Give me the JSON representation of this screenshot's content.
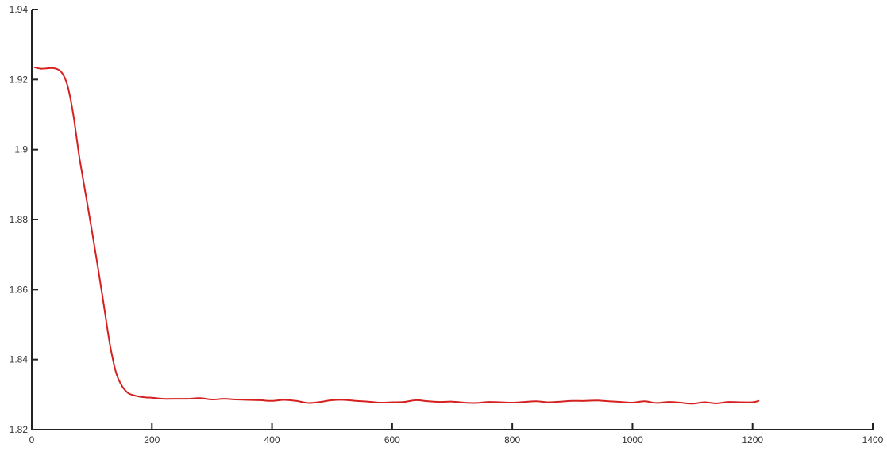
{
  "chart_data": {
    "type": "line",
    "title": "",
    "xlabel": "",
    "ylabel": "",
    "xlim": [
      0,
      1400
    ],
    "ylim": [
      1.82,
      1.94
    ],
    "x_ticks": [
      0,
      200,
      400,
      600,
      800,
      1000,
      1200,
      1400
    ],
    "x_tick_labels": [
      "0",
      "200",
      "400",
      "600",
      "800",
      "1000",
      "1200",
      "1400"
    ],
    "y_ticks": [
      1.82,
      1.84,
      1.86,
      1.88,
      1.9,
      1.92,
      1.94
    ],
    "y_tick_labels": [
      "1.82",
      "1.84",
      "1.86",
      "1.88",
      "1.9",
      "1.92",
      "1.94"
    ],
    "grid": false,
    "series": [
      {
        "color": "#d62020",
        "x": [
          5,
          15,
          25,
          35,
          45,
          50,
          55,
          60,
          65,
          70,
          75,
          80,
          90,
          100,
          110,
          120,
          130,
          140,
          150,
          160,
          170,
          180,
          190,
          200,
          220,
          240,
          260,
          280,
          300,
          320,
          340,
          360,
          380,
          400,
          420,
          440,
          460,
          480,
          500,
          520,
          540,
          560,
          580,
          600,
          620,
          640,
          660,
          680,
          700,
          720,
          740,
          760,
          780,
          800,
          820,
          840,
          860,
          880,
          900,
          920,
          940,
          960,
          980,
          1000,
          1020,
          1040,
          1060,
          1080,
          1100,
          1120,
          1140,
          1160,
          1180,
          1200,
          1210
        ],
        "y": [
          1.9235,
          1.9231,
          1.9232,
          1.9233,
          1.9228,
          1.922,
          1.9205,
          1.918,
          1.914,
          1.909,
          1.903,
          1.897,
          1.887,
          1.877,
          1.8665,
          1.8555,
          1.8445,
          1.8365,
          1.8325,
          1.8305,
          1.8298,
          1.8294,
          1.8292,
          1.8291,
          1.8288,
          1.8288,
          1.8288,
          1.829,
          1.8286,
          1.8288,
          1.8286,
          1.8285,
          1.8284,
          1.8282,
          1.8285,
          1.8282,
          1.8276,
          1.8279,
          1.8284,
          1.8285,
          1.8282,
          1.828,
          1.8277,
          1.8278,
          1.8279,
          1.8284,
          1.8281,
          1.8279,
          1.828,
          1.8277,
          1.8276,
          1.8279,
          1.8278,
          1.8277,
          1.8279,
          1.8281,
          1.8278,
          1.828,
          1.8282,
          1.8282,
          1.8283,
          1.8281,
          1.8279,
          1.8277,
          1.8281,
          1.8276,
          1.8279,
          1.8277,
          1.8274,
          1.8278,
          1.8275,
          1.8279,
          1.8278,
          1.8278,
          1.8282
        ]
      }
    ]
  }
}
